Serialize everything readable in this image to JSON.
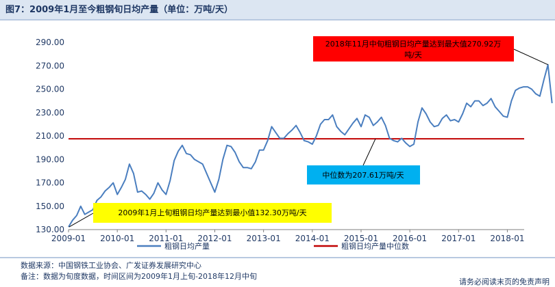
{
  "title": "图7：2009年1月至今粗钢旬日均产量（单位：万吨/天）",
  "notes": {
    "source": "数据来源：中国钢铁工业协会、广发证券发展研究中心",
    "remark": "备注：数据为旬度数据，时间区间为2009年1月上旬-2018年12月中旬",
    "disclaimer": "请务必阅读末页的免责声明"
  },
  "colors": {
    "series": "#4a7ebf",
    "median": "#c00000",
    "max_box": "#ff0000",
    "min_box": "#ffff00",
    "median_box": "#00b0f0"
  },
  "chart_data": {
    "type": "line",
    "ylim": [
      130,
      290
    ],
    "yticks": [
      "130.00",
      "150.00",
      "170.00",
      "190.00",
      "210.00",
      "230.00",
      "250.00",
      "270.00",
      "290.00"
    ],
    "xticks": [
      "2009-01",
      "2010-01",
      "2011-01",
      "2012-01",
      "2013-01",
      "2014-01",
      "2015-01",
      "2016-01",
      "2017-01",
      "2018-01"
    ],
    "grid": false,
    "legend_position": "bottom",
    "series": [
      {
        "name": "粗钢日均产量",
        "x": [
          "2009-01",
          "2009-02",
          "2009-03",
          "2009-04",
          "2009-05",
          "2009-06",
          "2009-07",
          "2009-08",
          "2009-09",
          "2009-10",
          "2009-11",
          "2009-12",
          "2010-01",
          "2010-02",
          "2010-03",
          "2010-04",
          "2010-05",
          "2010-06",
          "2010-07",
          "2010-08",
          "2010-09",
          "2010-10",
          "2010-11",
          "2010-12",
          "2011-01",
          "2011-02",
          "2011-03",
          "2011-04",
          "2011-05",
          "2011-06",
          "2011-07",
          "2011-08",
          "2011-09",
          "2011-10",
          "2011-11",
          "2011-12",
          "2012-01",
          "2012-02",
          "2012-03",
          "2012-04",
          "2012-05",
          "2012-06",
          "2012-07",
          "2012-08",
          "2012-09",
          "2012-10",
          "2012-11",
          "2012-12",
          "2013-01",
          "2013-02",
          "2013-03",
          "2013-04",
          "2013-05",
          "2013-06",
          "2013-07",
          "2013-08",
          "2013-09",
          "2013-10",
          "2013-11",
          "2013-12",
          "2014-01",
          "2014-02",
          "2014-03",
          "2014-04",
          "2014-05",
          "2014-06",
          "2014-07",
          "2014-08",
          "2014-09",
          "2014-10",
          "2014-11",
          "2014-12",
          "2015-01",
          "2015-02",
          "2015-03",
          "2015-04",
          "2015-05",
          "2015-06",
          "2015-07",
          "2015-08",
          "2015-09",
          "2015-10",
          "2015-11",
          "2015-12",
          "2016-01",
          "2016-02",
          "2016-03",
          "2016-04",
          "2016-05",
          "2016-06",
          "2016-07",
          "2016-08",
          "2016-09",
          "2016-10",
          "2016-11",
          "2016-12",
          "2017-01",
          "2017-02",
          "2017-03",
          "2017-04",
          "2017-05",
          "2017-06",
          "2017-07",
          "2017-08",
          "2017-09",
          "2017-10",
          "2017-11",
          "2017-12",
          "2018-01",
          "2018-02",
          "2018-03",
          "2018-04",
          "2018-05",
          "2018-06",
          "2018-07",
          "2018-08",
          "2018-09",
          "2018-10",
          "2018-11",
          "2018-12"
        ],
        "y": [
          132.3,
          138,
          142,
          150,
          143,
          145,
          147,
          155,
          158,
          163,
          166,
          170,
          160,
          166,
          173,
          186,
          178,
          162,
          163,
          160,
          156,
          161,
          170,
          164,
          160,
          172,
          189,
          197,
          202,
          195,
          194,
          190,
          188,
          186,
          178,
          170,
          162,
          173,
          190,
          202,
          201,
          196,
          188,
          183,
          183,
          182,
          188,
          198,
          198,
          206,
          218,
          213,
          208,
          208,
          212,
          215,
          219,
          213,
          206,
          205,
          203,
          210,
          220,
          224,
          224,
          228,
          218,
          214,
          211,
          216,
          221,
          225,
          218,
          228,
          226,
          219,
          222,
          226,
          219,
          208,
          206,
          205,
          208,
          204,
          201,
          203,
          222,
          234,
          229,
          222,
          218,
          219,
          225,
          228,
          223,
          224,
          222,
          229,
          238,
          235,
          240,
          240,
          236,
          238,
          242,
          235,
          231,
          227,
          226,
          240,
          249,
          251,
          252,
          252,
          250,
          246,
          244,
          258,
          270.92,
          238
        ]
      }
    ],
    "reference_line": {
      "name": "粗钢日均产量中位数",
      "value": 207.61
    },
    "annotations": {
      "max": "2018年11月中旬粗钢日均产量达到最大值270.92万吨/天",
      "median": "中位数为207.61万吨/天",
      "min": "2009年1月上旬粗钢日均产量达到最小值132.30万吨/天"
    }
  }
}
